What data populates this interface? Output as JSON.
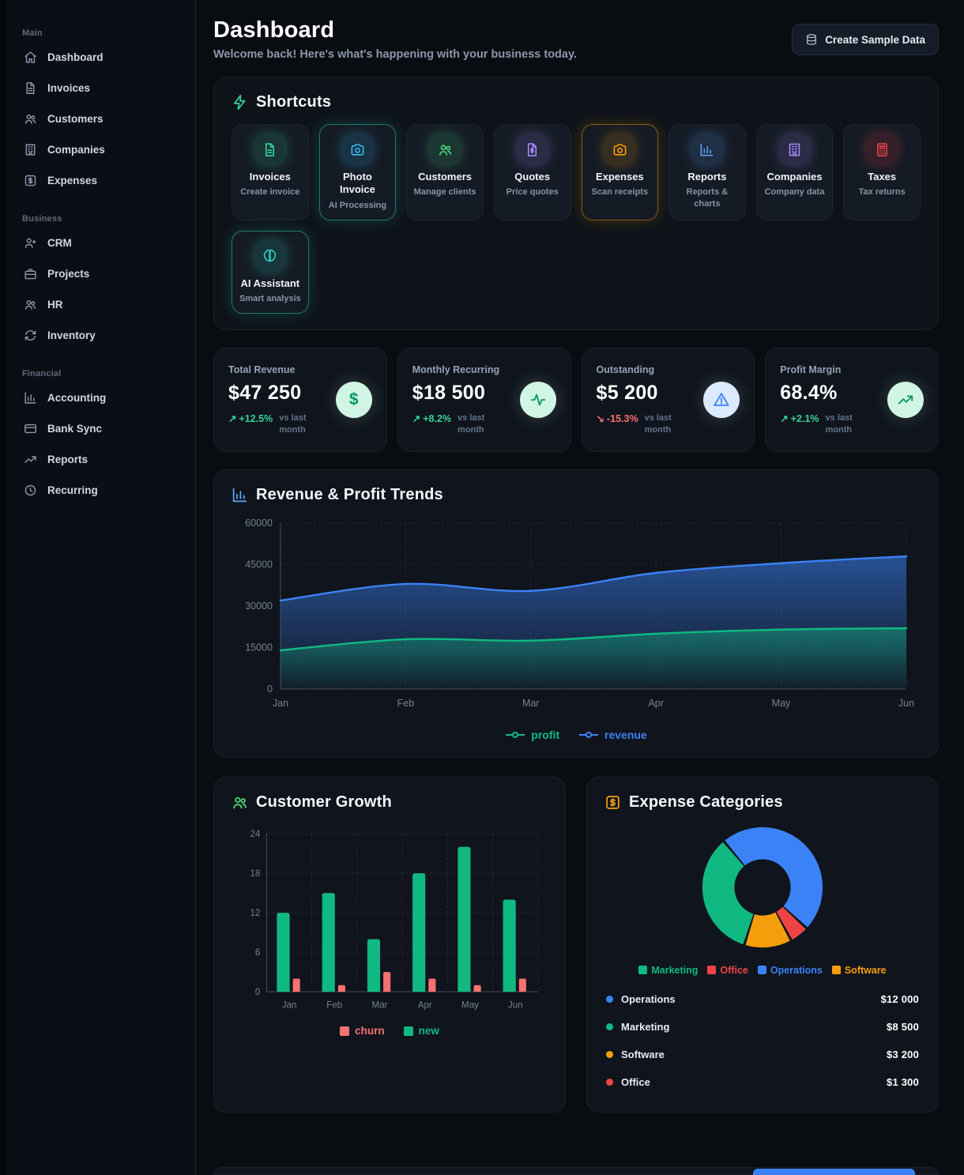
{
  "header": {
    "title": "Dashboard",
    "subtitle": "Welcome back! Here's what's happening with your business today.",
    "create_button": "Create Sample Data"
  },
  "sidebar": {
    "sections": [
      {
        "label": "Main",
        "items": [
          {
            "label": "Dashboard"
          },
          {
            "label": "Invoices"
          },
          {
            "label": "Customers"
          },
          {
            "label": "Companies"
          },
          {
            "label": "Expenses"
          }
        ]
      },
      {
        "label": "Business",
        "items": [
          {
            "label": "CRM"
          },
          {
            "label": "Projects"
          },
          {
            "label": "HR"
          },
          {
            "label": "Inventory"
          }
        ]
      },
      {
        "label": "Financial",
        "items": [
          {
            "label": "Accounting"
          },
          {
            "label": "Bank Sync"
          },
          {
            "label": "Reports"
          },
          {
            "label": "Recurring"
          }
        ]
      }
    ]
  },
  "shortcuts": {
    "title": "Shortcuts",
    "tiles": [
      {
        "title": "Invoices",
        "subtitle": "Create invoice",
        "color": "#34d399"
      },
      {
        "title": "Photo Invoice",
        "subtitle": "AI Processing",
        "color": "#38bdf8",
        "glow": "#2dd4bf"
      },
      {
        "title": "Customers",
        "subtitle": "Manage clients",
        "color": "#4ade80"
      },
      {
        "title": "Quotes",
        "subtitle": "Price quotes",
        "color": "#a78bfa"
      },
      {
        "title": "Expenses",
        "subtitle": "Scan receipts",
        "color": "#f59e0b",
        "glow": "#f59e0b"
      },
      {
        "title": "Reports",
        "subtitle": "Reports & charts",
        "color": "#60a5fa"
      },
      {
        "title": "Companies",
        "subtitle": "Company data",
        "color": "#a78bfa"
      },
      {
        "title": "Taxes",
        "subtitle": "Tax returns",
        "color": "#ef4444"
      },
      {
        "title": "AI Assistant",
        "subtitle": "Smart analysis",
        "color": "#2dd4bf",
        "glow": "#2dd4bf"
      }
    ]
  },
  "stats": [
    {
      "label": "Total Revenue",
      "value": "$47 250",
      "delta": "+12.5%",
      "direction": "up",
      "suffix": "vs last month",
      "icon_bg": "#d1f5e4",
      "icon_color": "#059669"
    },
    {
      "label": "Monthly Recurring",
      "value": "$18 500",
      "delta": "+8.2%",
      "direction": "up",
      "suffix": "vs last month",
      "icon_bg": "#d1f5e4",
      "icon_color": "#059669"
    },
    {
      "label": "Outstanding",
      "value": "$5 200",
      "delta": "-15.3%",
      "direction": "down",
      "suffix": "vs last month",
      "icon_bg": "#dbeafe",
      "icon_color": "#3b82f6"
    },
    {
      "label": "Profit Margin",
      "value": "68.4%",
      "delta": "+2.1%",
      "direction": "up",
      "suffix": "vs last month",
      "icon_bg": "#d1f5e4",
      "icon_color": "#059669"
    }
  ],
  "chart_data": [
    {
      "type": "area",
      "title": "Revenue & Profit Trends",
      "categories": [
        "Jan",
        "Feb",
        "Mar",
        "Apr",
        "May",
        "Jun"
      ],
      "series": [
        {
          "name": "profit",
          "color": "#10b981",
          "values": [
            14000,
            18000,
            17500,
            20000,
            21500,
            22000
          ]
        },
        {
          "name": "revenue",
          "color": "#3b82f6",
          "values": [
            32000,
            38000,
            35500,
            42000,
            45500,
            48000
          ]
        }
      ],
      "ylim": [
        0,
        60000
      ],
      "yticks": [
        0,
        15000,
        30000,
        45000,
        60000
      ],
      "grid": true,
      "legend_position": "bottom"
    },
    {
      "type": "bar",
      "title": "Customer Growth",
      "categories": [
        "Jan",
        "Feb",
        "Mar",
        "Apr",
        "May",
        "Jun"
      ],
      "series": [
        {
          "name": "new",
          "color": "#10b981",
          "values": [
            12,
            15,
            8,
            18,
            22,
            14
          ]
        },
        {
          "name": "churn",
          "color": "#f87171",
          "values": [
            2,
            1,
            3,
            2,
            1,
            2
          ]
        }
      ],
      "legend_order": [
        "churn",
        "new"
      ],
      "ylim": [
        0,
        24
      ],
      "yticks": [
        0,
        6,
        12,
        18,
        24
      ],
      "grid": true,
      "legend_position": "bottom"
    },
    {
      "type": "pie",
      "title": "Expense Categories",
      "start_angle": -40,
      "pad_angle": 2.5,
      "inner_radius_ratio": 0.47,
      "slices": [
        {
          "label": "Operations",
          "value": 12000,
          "display": "$12 000",
          "color": "#3b82f6"
        },
        {
          "label": "Office",
          "value": 1300,
          "display": "$1 300",
          "color": "#ef4444"
        },
        {
          "label": "Software",
          "value": 3200,
          "display": "$3 200",
          "color": "#f59e0b"
        },
        {
          "label": "Marketing",
          "value": 8500,
          "display": "$8 500",
          "color": "#10b981"
        }
      ],
      "legend_order": [
        "Marketing",
        "Office",
        "Operations",
        "Software"
      ],
      "list_order": [
        "Operations",
        "Marketing",
        "Software",
        "Office"
      ]
    }
  ]
}
